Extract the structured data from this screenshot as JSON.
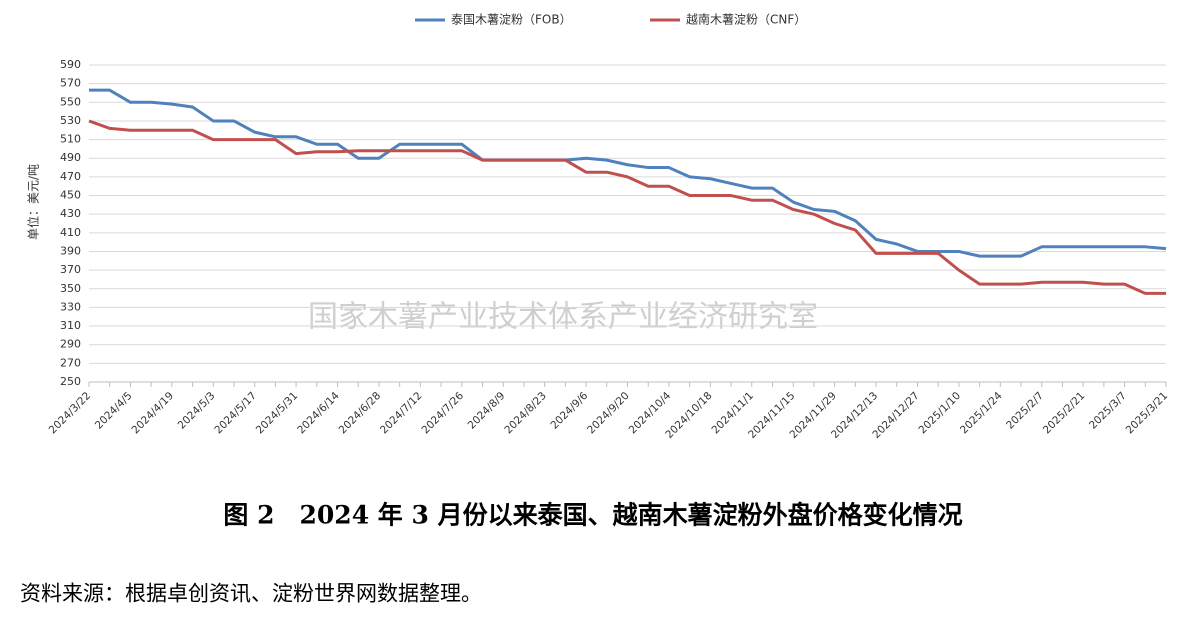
{
  "chart_data": {
    "type": "line",
    "y_label": "单位：美元/吨",
    "watermark": "国家木薯产业技术体系产业经济研究室",
    "caption": "图 2　2024 年 3 月份以来泰国、越南木薯淀粉外盘价格变化情况",
    "source": "资料来源：根据卓创资讯、淀粉世界网数据整理。",
    "categories": [
      "2024/3/22",
      null,
      "2024/4/5",
      null,
      "2024/4/19",
      null,
      "2024/5/3",
      null,
      "2024/5/17",
      null,
      "2024/5/31",
      null,
      "2024/6/14",
      null,
      "2024/6/28",
      null,
      "2024/7/12",
      null,
      "2024/7/26",
      null,
      "2024/8/9",
      null,
      "2024/8/23",
      null,
      "2024/9/6",
      null,
      "2024/9/20",
      null,
      "2024/10/4",
      null,
      "2024/10/18",
      null,
      "2024/11/1",
      null,
      "2024/11/15",
      null,
      "2024/11/29",
      null,
      "2024/12/13",
      null,
      "2024/12/27",
      null,
      "2025/1/10",
      null,
      "2025/1/24",
      null,
      "2025/2/7",
      null,
      "2025/2/21",
      null,
      "2025/3/7",
      null,
      "2025/3/21"
    ],
    "series": [
      {
        "name": "泰国木薯淀粉（FOB）",
        "color": "#4f81bd",
        "values": [
          563,
          563,
          550,
          550,
          548,
          545,
          530,
          530,
          518,
          513,
          513,
          505,
          505,
          490,
          490,
          505,
          505,
          505,
          505,
          488,
          488,
          488,
          488,
          488,
          490,
          488,
          483,
          480,
          480,
          470,
          468,
          463,
          458,
          458,
          443,
          435,
          433,
          423,
          403,
          398,
          390,
          390,
          390,
          385,
          385,
          385,
          395,
          395,
          395,
          395,
          395,
          395,
          393
        ]
      },
      {
        "name": "越南木薯淀粉（CNF）",
        "color": "#c0504d",
        "values": [
          530,
          522,
          520,
          520,
          520,
          520,
          510,
          510,
          510,
          510,
          495,
          497,
          497,
          498,
          498,
          498,
          498,
          498,
          498,
          488,
          488,
          488,
          488,
          488,
          475,
          475,
          470,
          460,
          460,
          450,
          450,
          450,
          445,
          445,
          435,
          430,
          420,
          413,
          388,
          388,
          388,
          388,
          370,
          355,
          355,
          355,
          357,
          357,
          357,
          355,
          355,
          345,
          345
        ]
      }
    ],
    "ylim": [
      250,
      590
    ],
    "yticks": [
      250,
      270,
      290,
      310,
      330,
      350,
      370,
      390,
      410,
      430,
      450,
      470,
      490,
      510,
      530,
      550,
      570,
      590
    ],
    "grid": true,
    "legend": "top"
  }
}
